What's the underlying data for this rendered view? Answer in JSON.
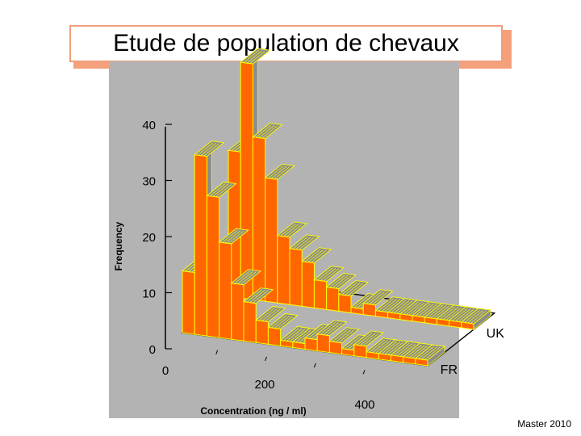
{
  "title": "Etude de population de chevaux",
  "footer": "Master 2010",
  "colors": {
    "front_face": "#ff6600",
    "top_face": "#ffff00",
    "side_face": "#8c8c8c",
    "panel": "#b3b3b3"
  },
  "chart_data": {
    "type": "bar",
    "subtype": "3d-histogram",
    "xlabel": "Concentration (ng / ml)",
    "ylabel": "Frequency",
    "x_ticks": [
      "0",
      "200",
      "400"
    ],
    "y_ticks": [
      "0",
      "10",
      "20",
      "30",
      "40"
    ],
    "ylim": [
      0,
      40
    ],
    "grid": false,
    "series": [
      {
        "name": "FR",
        "values": [
          11,
          32,
          25,
          17,
          10,
          7,
          4,
          3,
          1,
          1,
          2,
          3,
          2,
          1,
          2,
          1,
          1,
          1,
          1,
          1
        ]
      },
      {
        "name": "UK",
        "values": [
          26,
          42,
          29,
          22,
          12,
          10,
          8,
          5,
          4,
          3,
          1,
          2,
          1,
          1,
          1,
          1,
          1,
          1,
          1,
          1
        ]
      }
    ]
  }
}
